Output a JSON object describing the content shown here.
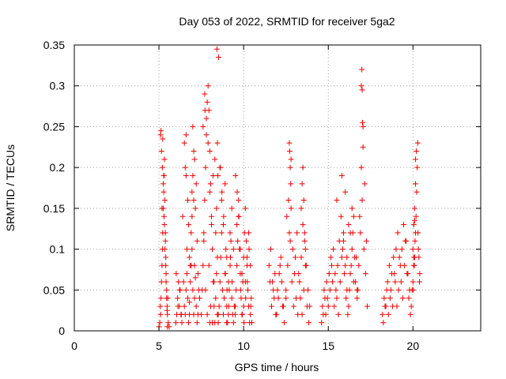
{
  "chart_data": {
    "type": "scatter",
    "title": "Day 053 of 2022, SRMTID for receiver 5ga2",
    "xlabel": "GPS time / hours",
    "ylabel": "SRMTID / TECUs",
    "xlim": [
      0,
      24
    ],
    "ylim": [
      0,
      0.35
    ],
    "xticks": [
      0,
      5,
      10,
      15,
      20
    ],
    "yticks": [
      0,
      0.05,
      0.1,
      0.15,
      0.2,
      0.25,
      0.3,
      0.35
    ],
    "xtick_labels": [
      "0",
      "5",
      "10",
      "15",
      "20"
    ],
    "ytick_labels": [
      "0",
      "0.05",
      "0.1",
      "0.15",
      "0.2",
      "0.25",
      "0.3",
      "0.35"
    ],
    "grid": true,
    "marker": "+",
    "color": "#ee0000",
    "series": [
      {
        "x": [
          5.0,
          5.05,
          5.1,
          5.12,
          5.15,
          5.18,
          5.2,
          5.22,
          5.25,
          5.28,
          5.3,
          5.32,
          5.35,
          5.38,
          5.4,
          5.42,
          5.45,
          5.48,
          5.5,
          5.5,
          5.1,
          5.15,
          5.2,
          5.25,
          5.3,
          5.35,
          5.4,
          5.45,
          5.12,
          5.22,
          5.32,
          5.42,
          5.08,
          5.18,
          5.28,
          5.38,
          5.48,
          5.55,
          5.6,
          5.52,
          6.4,
          6.45,
          6.5,
          6.55,
          6.6,
          6.65,
          6.7,
          6.75,
          6.8,
          6.85,
          6.9,
          6.95,
          7.0,
          7.05,
          7.1,
          7.15,
          7.2,
          7.25,
          7.3,
          7.35,
          6.5,
          6.6,
          6.7,
          6.8,
          6.9,
          7.0,
          7.1,
          7.2,
          7.3,
          7.4,
          6.55,
          6.65,
          6.75,
          6.85,
          6.95,
          7.05,
          7.15,
          7.25,
          6.6,
          6.8,
          7.5,
          7.55,
          7.6,
          7.65,
          7.7,
          7.75,
          7.8,
          7.85,
          7.9,
          7.95,
          8.0,
          8.05,
          8.1,
          8.15,
          8.2,
          8.25,
          8.3,
          8.35,
          8.4,
          8.45,
          7.6,
          7.7,
          7.8,
          7.9,
          8.0,
          8.1,
          8.2,
          8.3,
          8.4,
          7.65,
          7.75,
          7.85,
          7.95,
          8.05,
          8.15,
          8.25,
          8.35,
          8.45,
          7.72,
          8.42,
          8.5,
          8.55,
          8.6,
          8.65,
          8.7,
          8.75,
          8.8,
          8.85,
          8.9,
          8.95,
          9.0,
          9.05,
          9.1,
          9.15,
          9.2,
          9.25,
          9.3,
          9.35,
          9.4,
          9.45,
          8.6,
          8.7,
          8.8,
          8.9,
          9.0,
          9.1,
          9.2,
          9.3,
          9.4,
          8.52,
          8.62,
          8.72,
          8.82,
          8.92,
          9.02,
          9.12,
          9.22,
          9.32,
          8.45,
          8.48,
          9.5,
          9.55,
          9.6,
          9.65,
          9.7,
          9.75,
          9.8,
          9.85,
          9.9,
          9.95,
          10.0,
          10.05,
          10.1,
          10.15,
          10.2,
          10.25,
          10.3,
          10.35,
          10.4,
          10.45,
          9.6,
          9.7,
          9.8,
          9.9,
          10.0,
          10.1,
          10.2,
          10.3,
          10.4,
          9.52,
          9.62,
          9.72,
          9.82,
          9.92,
          10.02,
          10.12,
          10.22,
          10.32,
          10.42,
          10.48,
          11.5,
          11.6,
          11.7,
          11.8,
          11.9,
          12.0,
          12.1,
          12.2,
          12.3,
          12.4,
          12.5,
          11.55,
          11.65,
          11.75,
          11.85,
          11.95,
          12.05,
          12.15,
          12.25,
          12.35,
          12.5,
          12.6,
          12.7,
          12.8,
          12.9,
          13.0,
          13.1,
          13.2,
          13.3,
          13.4,
          13.5,
          13.6,
          13.7,
          13.8,
          13.9,
          12.55,
          12.65,
          12.75,
          12.85,
          12.95,
          13.05,
          13.15,
          13.25,
          13.35,
          13.45,
          13.55,
          13.65,
          13.75,
          13.85,
          12.7,
          12.72,
          12.75,
          12.78,
          12.8,
          13.5,
          13.45,
          13.55,
          13.4,
          13.6,
          13.65,
          14.6,
          14.7,
          14.8,
          14.9,
          15.0,
          15.1,
          15.2,
          15.3,
          15.4,
          15.5,
          15.6,
          15.7,
          15.8,
          15.9,
          16.0,
          16.1,
          16.2,
          16.3,
          16.4,
          16.5,
          14.65,
          14.75,
          14.85,
          14.95,
          15.05,
          15.15,
          15.25,
          15.35,
          15.45,
          15.55,
          15.65,
          15.75,
          15.85,
          15.95,
          16.05,
          16.15,
          16.25,
          16.35,
          16.45,
          16.55,
          16.6,
          16.7,
          16.8,
          16.9,
          17.0,
          17.1,
          17.2,
          17.3,
          16.65,
          16.75,
          16.85,
          16.95,
          17.05,
          17.15,
          17.25,
          16.95,
          16.98,
          17.0,
          17.02,
          17.05,
          15.5,
          15.8,
          16.0,
          16.2,
          16.4,
          16.1,
          15.9,
          16.3,
          16.5,
          16.7,
          18.2,
          18.3,
          18.4,
          18.5,
          18.6,
          18.7,
          18.8,
          18.9,
          19.0,
          19.1,
          19.2,
          19.3,
          19.4,
          19.5,
          19.6,
          19.7,
          19.8,
          19.9,
          20.0,
          20.1,
          18.25,
          18.35,
          18.45,
          18.55,
          18.65,
          18.75,
          18.85,
          18.95,
          19.05,
          19.15,
          19.25,
          19.35,
          19.45,
          19.55,
          19.65,
          19.75,
          19.85,
          19.95,
          20.05,
          20.15,
          20.0,
          20.05,
          20.1,
          20.15,
          20.2,
          20.25,
          20.3,
          20.35,
          20.4,
          20.02,
          20.08,
          20.12,
          20.18,
          20.22,
          20.28,
          20.32,
          20.38,
          20.05,
          20.1,
          20.15,
          6.0,
          6.05,
          6.1,
          6.15,
          6.2,
          6.25,
          6.3,
          6.35,
          6.02,
          6.12,
          6.22,
          6.32,
          6.95,
          7.0,
          7.05,
          7.1,
          8.0,
          8.5,
          9.0,
          9.5
        ],
        "y": [
          0.005,
          0.01,
          0.02,
          0.04,
          0.06,
          0.08,
          0.1,
          0.12,
          0.15,
          0.17,
          0.19,
          0.21,
          0.16,
          0.12,
          0.09,
          0.07,
          0.05,
          0.03,
          0.02,
          0.005,
          0.24,
          0.22,
          0.2,
          0.18,
          0.14,
          0.1,
          0.08,
          0.04,
          0.245,
          0.235,
          0.13,
          0.06,
          0.03,
          0.15,
          0.19,
          0.11,
          0.025,
          0.01,
          0.005,
          0.04,
          0.14,
          0.06,
          0.03,
          0.02,
          0.05,
          0.07,
          0.04,
          0.01,
          0.035,
          0.06,
          0.08,
          0.1,
          0.05,
          0.02,
          0.04,
          0.065,
          0.03,
          0.01,
          0.02,
          0.05,
          0.23,
          0.19,
          0.16,
          0.09,
          0.12,
          0.25,
          0.21,
          0.18,
          0.07,
          0.04,
          0.2,
          0.1,
          0.13,
          0.08,
          0.17,
          0.22,
          0.15,
          0.11,
          0.24,
          0.02,
          0.02,
          0.05,
          0.08,
          0.12,
          0.16,
          0.2,
          0.24,
          0.28,
          0.3,
          0.27,
          0.22,
          0.18,
          0.14,
          0.1,
          0.06,
          0.03,
          0.01,
          0.04,
          0.07,
          0.09,
          0.25,
          0.29,
          0.26,
          0.23,
          0.17,
          0.13,
          0.19,
          0.21,
          0.15,
          0.11,
          0.05,
          0.02,
          0.08,
          0.03,
          0.01,
          0.06,
          0.12,
          0.02,
          0.27,
          0.345,
          0.01,
          0.03,
          0.06,
          0.09,
          0.12,
          0.05,
          0.02,
          0.04,
          0.07,
          0.1,
          0.03,
          0.01,
          0.02,
          0.05,
          0.08,
          0.11,
          0.04,
          0.02,
          0.01,
          0.03,
          0.2,
          0.16,
          0.13,
          0.18,
          0.09,
          0.06,
          0.12,
          0.15,
          0.1,
          0.335,
          0.2,
          0.17,
          0.14,
          0.07,
          0.05,
          0.03,
          0.09,
          0.06,
          0.23,
          0.19,
          0.02,
          0.05,
          0.08,
          0.11,
          0.14,
          0.1,
          0.07,
          0.04,
          0.02,
          0.06,
          0.09,
          0.12,
          0.15,
          0.11,
          0.08,
          0.05,
          0.03,
          0.01,
          0.02,
          0.04,
          0.13,
          0.16,
          0.1,
          0.07,
          0.03,
          0.06,
          0.09,
          0.12,
          0.08,
          0.19,
          0.17,
          0.14,
          0.05,
          0.02,
          0.01,
          0.04,
          0.06,
          0.1,
          0.03,
          0.01,
          0.08,
          0.1,
          0.06,
          0.04,
          0.02,
          0.05,
          0.07,
          0.09,
          0.03,
          0.01,
          0.04,
          0.06,
          0.03,
          0.05,
          0.07,
          0.02,
          0.04,
          0.08,
          0.06,
          0.03,
          0.05,
          0.08,
          0.12,
          0.15,
          0.1,
          0.07,
          0.04,
          0.02,
          0.06,
          0.09,
          0.13,
          0.11,
          0.08,
          0.05,
          0.03,
          0.14,
          0.16,
          0.11,
          0.06,
          0.03,
          0.09,
          0.12,
          0.07,
          0.04,
          0.02,
          0.05,
          0.08,
          0.03,
          0.01,
          0.23,
          0.22,
          0.2,
          0.18,
          0.21,
          0.2,
          0.18,
          0.16,
          0.15,
          0.12,
          0.1,
          0.01,
          0.02,
          0.04,
          0.06,
          0.03,
          0.05,
          0.08,
          0.1,
          0.07,
          0.04,
          0.02,
          0.06,
          0.09,
          0.12,
          0.08,
          0.05,
          0.03,
          0.07,
          0.1,
          0.06,
          0.03,
          0.05,
          0.02,
          0.04,
          0.07,
          0.09,
          0.06,
          0.03,
          0.05,
          0.08,
          0.11,
          0.14,
          0.1,
          0.07,
          0.04,
          0.02,
          0.05,
          0.08,
          0.12,
          0.09,
          0.06,
          0.04,
          0.08,
          0.12,
          0.16,
          0.1,
          0.07,
          0.03,
          0.09,
          0.05,
          0.14,
          0.2,
          0.25,
          0.18,
          0.11,
          0.3,
          0.32,
          0.295,
          0.255,
          0.225,
          0.16,
          0.19,
          0.17,
          0.13,
          0.15,
          0.09,
          0.11,
          0.12,
          0.14,
          0.05,
          0.02,
          0.04,
          0.03,
          0.06,
          0.08,
          0.05,
          0.03,
          0.07,
          0.1,
          0.12,
          0.09,
          0.06,
          0.04,
          0.08,
          0.11,
          0.07,
          0.05,
          0.03,
          0.06,
          0.09,
          0.01,
          0.03,
          0.05,
          0.02,
          0.04,
          0.07,
          0.09,
          0.06,
          0.03,
          0.05,
          0.08,
          0.1,
          0.13,
          0.11,
          0.07,
          0.04,
          0.02,
          0.05,
          0.08,
          0.12,
          0.1,
          0.13,
          0.15,
          0.18,
          0.22,
          0.2,
          0.12,
          0.09,
          0.07,
          0.05,
          0.08,
          0.11,
          0.14,
          0.17,
          0.23,
          0.1,
          0.06,
          0.09,
          0.135,
          0.21,
          0.01,
          0.02,
          0.04,
          0.06,
          0.03,
          0.05,
          0.02,
          0.01,
          0.07,
          0.03,
          0.05,
          0.02,
          0.14,
          0.19,
          0.16,
          0.08,
          0.01,
          0.02,
          0.01,
          0.03
        ]
      }
    ]
  }
}
